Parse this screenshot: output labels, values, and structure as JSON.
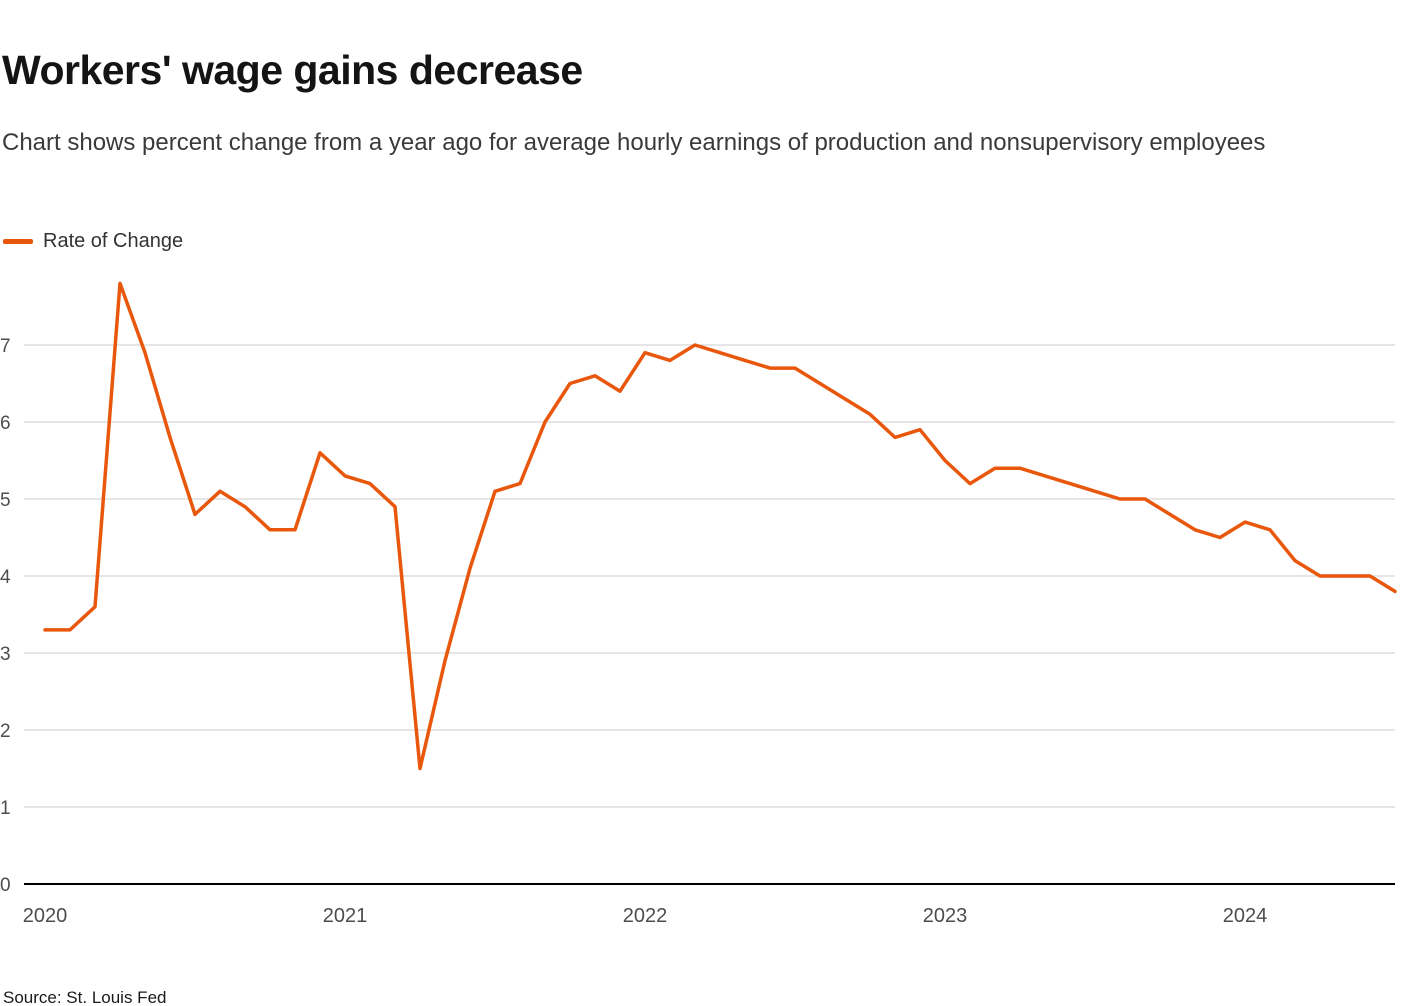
{
  "page": {
    "title": "Workers' wage gains decrease",
    "subtitle": "Chart shows percent change from a year ago for average hourly earnings of production and nonsupervisory employees",
    "source": "Source: St. Louis Fed"
  },
  "legend": {
    "items": [
      {
        "label": "Rate of Change",
        "color": "#E8570C"
      }
    ]
  },
  "colors": {
    "line": "#E8570C",
    "grid": "#CCCCCC",
    "axis": "#000000",
    "tick_text": "#4D4D4D"
  },
  "chart_data": {
    "type": "line",
    "title": "Workers' wage gains decrease",
    "subtitle": "Chart shows percent change from a year ago for average hourly earnings of production and nonsupervisory employees",
    "source": "Source: St. Louis Fed",
    "xlabel": "",
    "ylabel": "",
    "ylim": [
      0,
      8.2
    ],
    "grid": "horizontal",
    "legend_position": "top-left",
    "y_ticks": [
      0,
      1,
      2,
      3,
      4,
      5,
      6,
      7
    ],
    "x_tick_labels": [
      "2020",
      "2021",
      "2022",
      "2023",
      "2024"
    ],
    "x_tick_month_index": [
      0,
      12,
      24,
      36,
      48
    ],
    "series": [
      {
        "name": "Rate of Change",
        "color": "#E8570C",
        "unit": "percent",
        "x": [
          "2020-01",
          "2020-02",
          "2020-03",
          "2020-04",
          "2020-05",
          "2020-06",
          "2020-07",
          "2020-08",
          "2020-09",
          "2020-10",
          "2020-11",
          "2020-12",
          "2021-01",
          "2021-02",
          "2021-03",
          "2021-04",
          "2021-05",
          "2021-06",
          "2021-07",
          "2021-08",
          "2021-09",
          "2021-10",
          "2021-11",
          "2021-12",
          "2022-01",
          "2022-02",
          "2022-03",
          "2022-04",
          "2022-05",
          "2022-06",
          "2022-07",
          "2022-08",
          "2022-09",
          "2022-10",
          "2022-11",
          "2022-12",
          "2023-01",
          "2023-02",
          "2023-03",
          "2023-04",
          "2023-05",
          "2023-06",
          "2023-07",
          "2023-08",
          "2023-09",
          "2023-10",
          "2023-11",
          "2023-12",
          "2024-01",
          "2024-02",
          "2024-03",
          "2024-04",
          "2024-05",
          "2024-06",
          "2024-07"
        ],
        "values": [
          3.3,
          3.3,
          3.6,
          7.8,
          6.9,
          5.8,
          4.8,
          5.1,
          4.9,
          4.6,
          4.6,
          5.6,
          5.3,
          5.2,
          4.9,
          1.5,
          2.9,
          4.1,
          5.1,
          5.2,
          6.0,
          6.5,
          6.6,
          6.4,
          6.9,
          6.8,
          7.0,
          6.9,
          6.8,
          6.7,
          6.7,
          6.5,
          6.3,
          6.1,
          5.8,
          5.9,
          5.5,
          5.2,
          5.4,
          5.4,
          5.3,
          5.2,
          5.1,
          5.0,
          5.0,
          4.8,
          4.6,
          4.5,
          4.7,
          4.6,
          4.2,
          4.0,
          4.0,
          4.0,
          3.8
        ]
      }
    ]
  }
}
